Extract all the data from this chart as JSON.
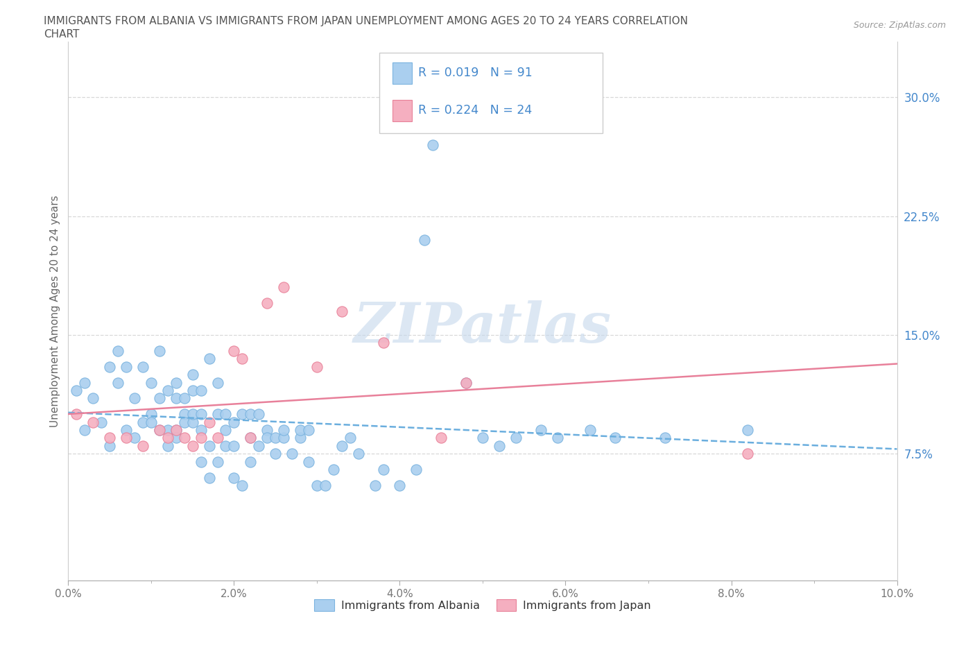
{
  "title_line1": "IMMIGRANTS FROM ALBANIA VS IMMIGRANTS FROM JAPAN UNEMPLOYMENT AMONG AGES 20 TO 24 YEARS CORRELATION",
  "title_line2": "CHART",
  "source_text": "Source: ZipAtlas.com",
  "ylabel": "Unemployment Among Ages 20 to 24 years",
  "xlim": [
    0.0,
    0.1
  ],
  "ylim": [
    -0.005,
    0.335
  ],
  "albania_color": "#aacfef",
  "albania_edge_color": "#7ab3df",
  "japan_color": "#f5afc0",
  "japan_edge_color": "#e88098",
  "albania_line_color": "#6aaede",
  "japan_line_color": "#e8809a",
  "r_albania": "0.019",
  "n_albania": "91",
  "r_japan": "0.224",
  "n_japan": "24",
  "legend_label_albania": "Immigrants from Albania",
  "legend_label_japan": "Immigrants from Japan",
  "watermark": "ZIPatlas",
  "watermark_color": "#c5d8ec",
  "background_color": "#ffffff",
  "grid_color": "#d8d8d8",
  "ytick_color": "#4488cc",
  "title_color": "#555555",
  "label_color": "#666666",
  "tick_label_color": "#777777",
  "albania_x": [
    0.001,
    0.002,
    0.002,
    0.003,
    0.004,
    0.005,
    0.005,
    0.006,
    0.006,
    0.007,
    0.007,
    0.008,
    0.008,
    0.009,
    0.009,
    0.01,
    0.01,
    0.01,
    0.011,
    0.011,
    0.011,
    0.012,
    0.012,
    0.012,
    0.013,
    0.013,
    0.013,
    0.013,
    0.014,
    0.014,
    0.014,
    0.015,
    0.015,
    0.015,
    0.015,
    0.016,
    0.016,
    0.016,
    0.016,
    0.017,
    0.017,
    0.017,
    0.018,
    0.018,
    0.018,
    0.019,
    0.019,
    0.019,
    0.02,
    0.02,
    0.02,
    0.021,
    0.021,
    0.022,
    0.022,
    0.022,
    0.023,
    0.023,
    0.024,
    0.024,
    0.025,
    0.025,
    0.026,
    0.026,
    0.027,
    0.028,
    0.028,
    0.029,
    0.029,
    0.03,
    0.031,
    0.032,
    0.033,
    0.034,
    0.035,
    0.037,
    0.038,
    0.04,
    0.042,
    0.043,
    0.044,
    0.048,
    0.05,
    0.052,
    0.054,
    0.057,
    0.059,
    0.063,
    0.066,
    0.072,
    0.082
  ],
  "albania_y": [
    0.115,
    0.12,
    0.09,
    0.11,
    0.095,
    0.08,
    0.13,
    0.14,
    0.12,
    0.09,
    0.13,
    0.085,
    0.11,
    0.095,
    0.13,
    0.1,
    0.095,
    0.12,
    0.14,
    0.09,
    0.11,
    0.08,
    0.09,
    0.115,
    0.11,
    0.12,
    0.09,
    0.085,
    0.1,
    0.11,
    0.095,
    0.095,
    0.1,
    0.115,
    0.125,
    0.07,
    0.09,
    0.1,
    0.115,
    0.06,
    0.08,
    0.135,
    0.07,
    0.1,
    0.12,
    0.09,
    0.1,
    0.08,
    0.06,
    0.08,
    0.095,
    0.055,
    0.1,
    0.07,
    0.085,
    0.1,
    0.08,
    0.1,
    0.09,
    0.085,
    0.075,
    0.085,
    0.085,
    0.09,
    0.075,
    0.085,
    0.09,
    0.09,
    0.07,
    0.055,
    0.055,
    0.065,
    0.08,
    0.085,
    0.075,
    0.055,
    0.065,
    0.055,
    0.065,
    0.21,
    0.27,
    0.12,
    0.085,
    0.08,
    0.085,
    0.09,
    0.085,
    0.09,
    0.085,
    0.085,
    0.09
  ],
  "japan_x": [
    0.001,
    0.003,
    0.005,
    0.007,
    0.009,
    0.011,
    0.012,
    0.013,
    0.014,
    0.015,
    0.016,
    0.017,
    0.018,
    0.02,
    0.021,
    0.022,
    0.024,
    0.026,
    0.03,
    0.033,
    0.038,
    0.045,
    0.048,
    0.082
  ],
  "japan_y": [
    0.1,
    0.095,
    0.085,
    0.085,
    0.08,
    0.09,
    0.085,
    0.09,
    0.085,
    0.08,
    0.085,
    0.095,
    0.085,
    0.14,
    0.135,
    0.085,
    0.17,
    0.18,
    0.13,
    0.165,
    0.145,
    0.085,
    0.12,
    0.075
  ]
}
